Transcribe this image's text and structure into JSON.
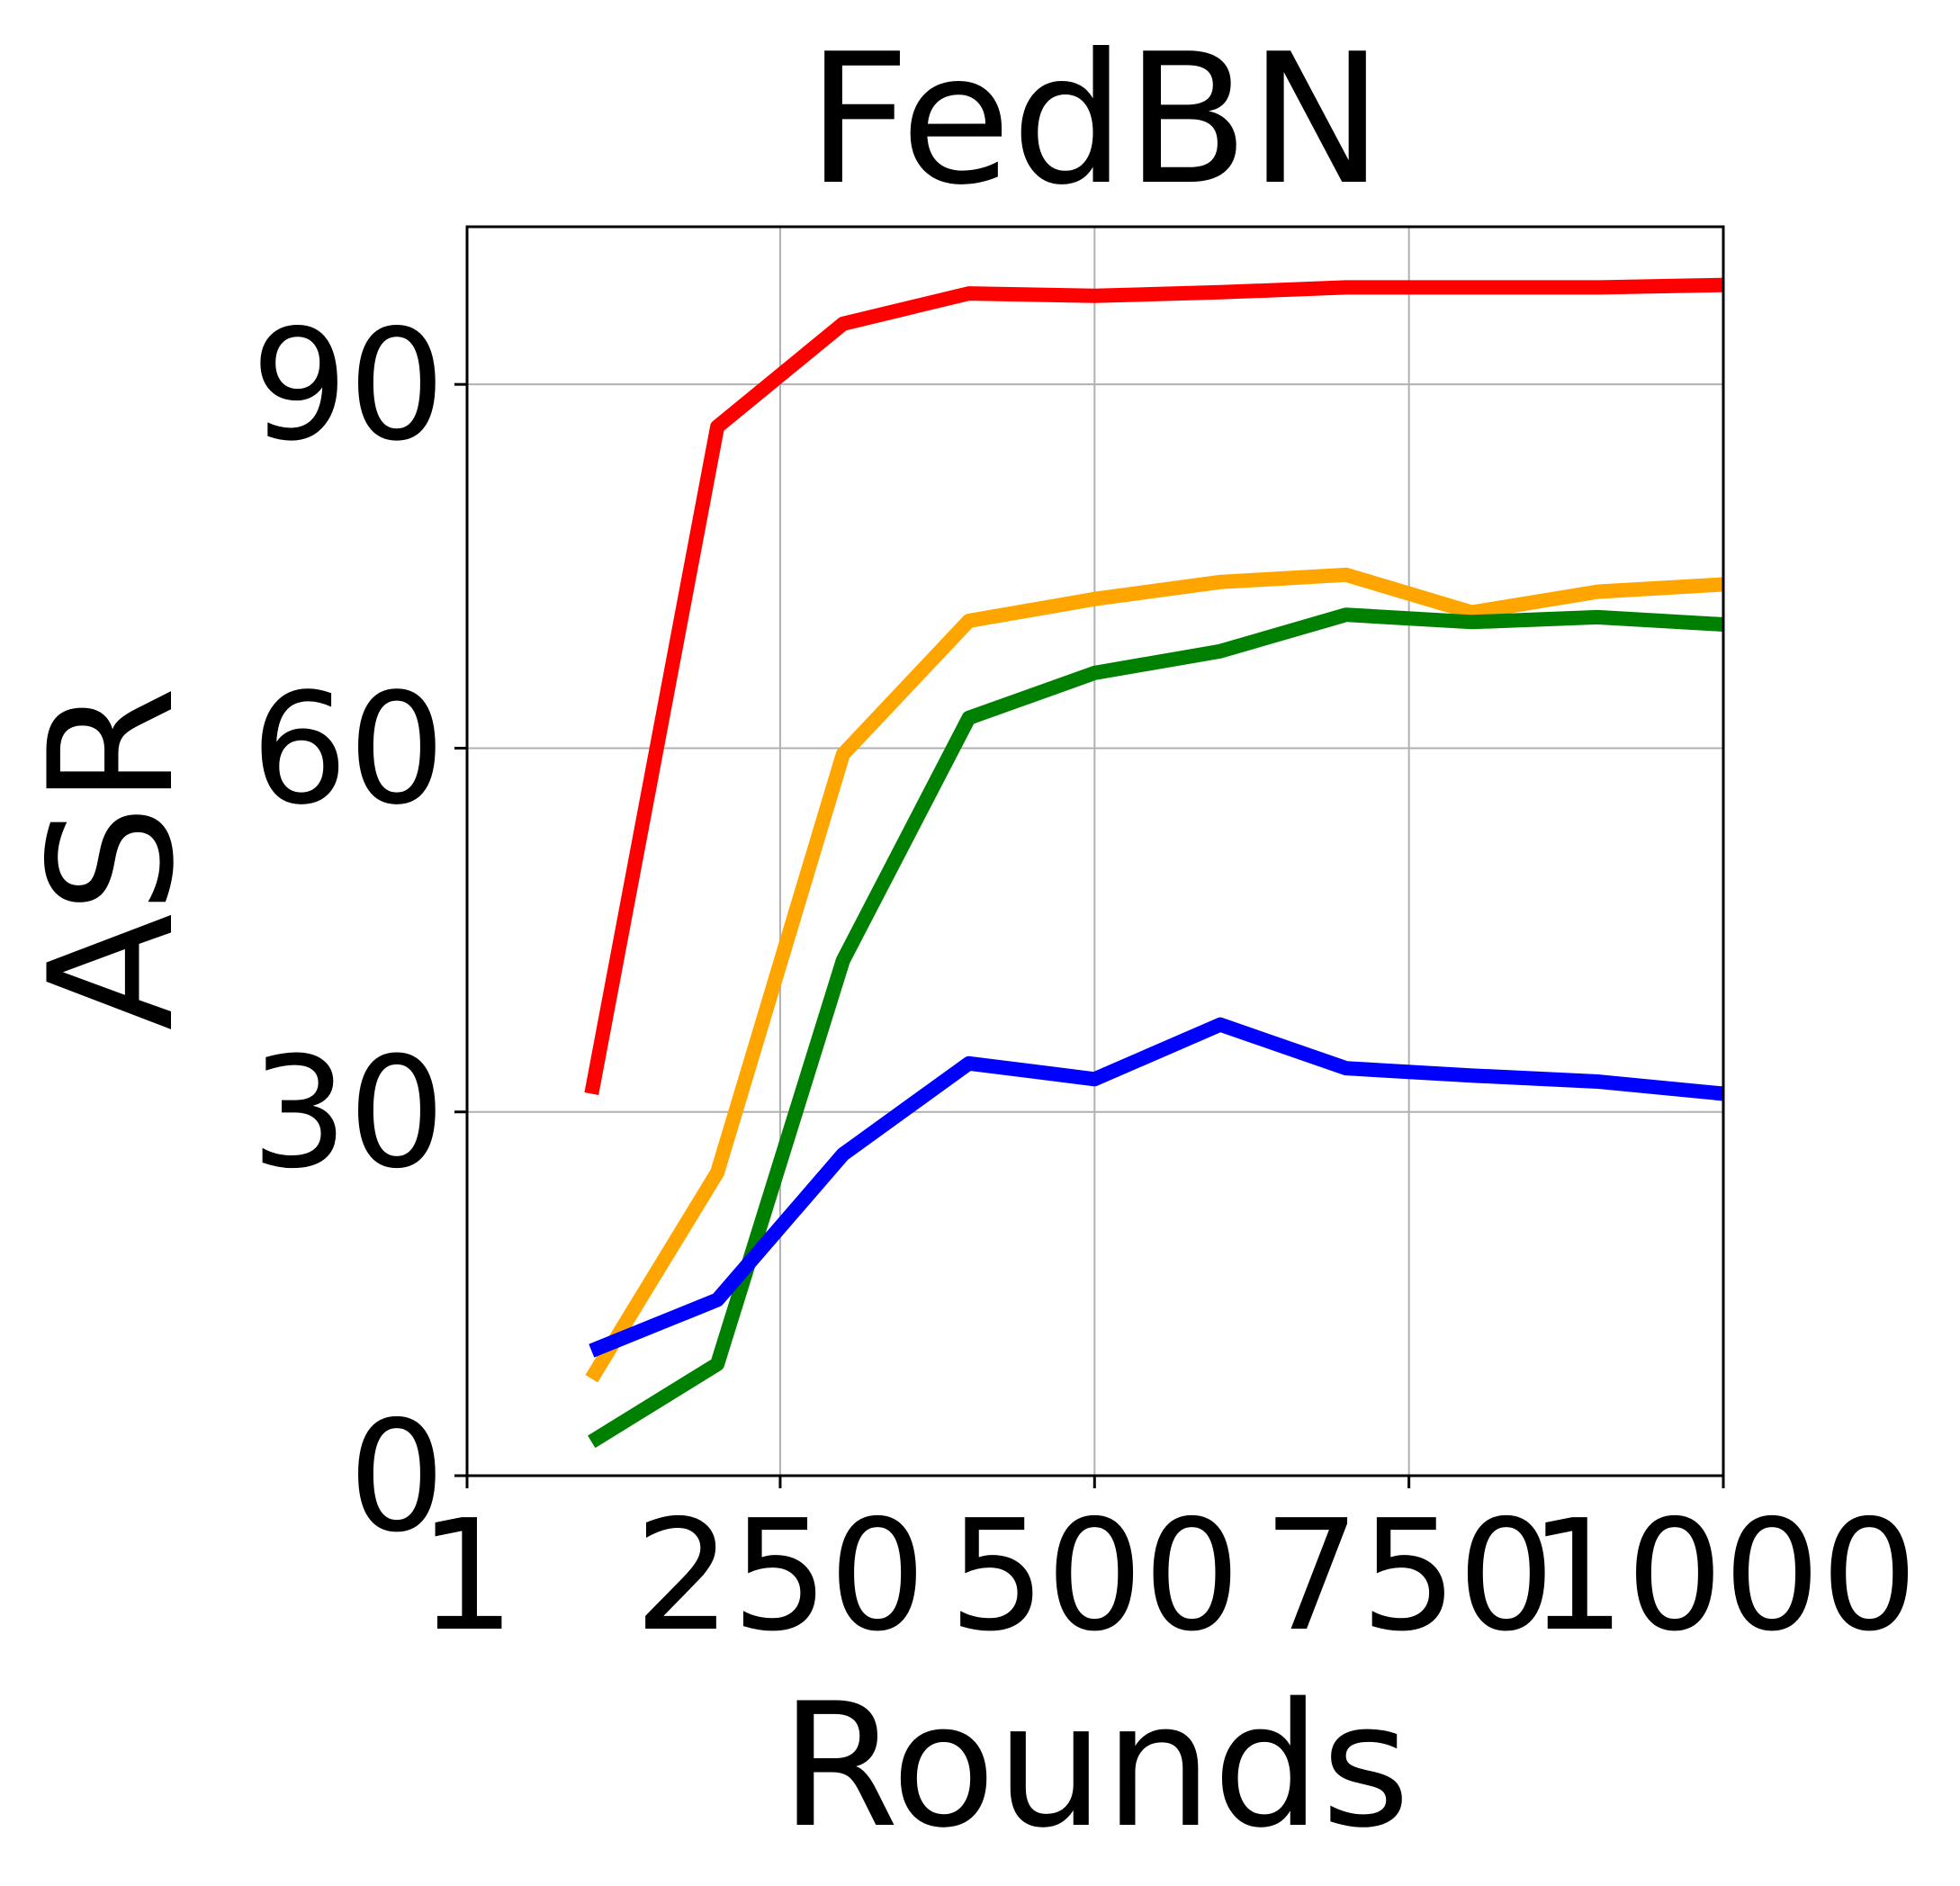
{
  "chart_data": {
    "type": "line",
    "title": "FedBN",
    "xlabel": "Rounds",
    "ylabel": "ASR",
    "xlim": [
      1,
      1000
    ],
    "ylim": [
      0,
      103
    ],
    "grid": true,
    "x_ticks": [
      {
        "value": 1,
        "label": "1"
      },
      {
        "value": 250,
        "label": "250"
      },
      {
        "value": 500,
        "label": "500"
      },
      {
        "value": 750,
        "label": "750"
      },
      {
        "value": 1000,
        "label": "1000"
      }
    ],
    "y_ticks": [
      {
        "value": 0,
        "label": "0"
      },
      {
        "value": 30,
        "label": "30"
      },
      {
        "value": 60,
        "label": "60"
      },
      {
        "value": 90,
        "label": "90"
      }
    ],
    "x": [
      100,
      200,
      300,
      400,
      500,
      600,
      700,
      800,
      900,
      1000
    ],
    "series": [
      {
        "name": "red",
        "color": "#ff0000",
        "x": [
          100,
          200,
          300,
          400,
          500,
          600,
          700,
          800,
          900,
          1000
        ],
        "values": [
          31.5,
          86.5,
          95.0,
          97.5,
          97.3,
          97.6,
          98.0,
          98.0,
          98.0,
          98.2
        ]
      },
      {
        "name": "orange",
        "color": "#ffa500",
        "x": [
          100,
          200,
          300,
          400,
          500,
          600,
          700,
          800,
          900,
          1000
        ],
        "values": [
          8.0,
          25.0,
          59.5,
          70.5,
          72.3,
          73.7,
          74.3,
          71.2,
          72.9,
          73.5
        ]
      },
      {
        "name": "green",
        "color": "#008000",
        "x": [
          100,
          200,
          300,
          400,
          500,
          600,
          700,
          800,
          900,
          1000
        ],
        "values": [
          2.8,
          9.2,
          42.5,
          62.5,
          66.2,
          68.0,
          71.0,
          70.4,
          70.8,
          70.2
        ]
      },
      {
        "name": "blue",
        "color": "#0000ff",
        "x": [
          100,
          200,
          300,
          400,
          500,
          600,
          700,
          800,
          900,
          1000
        ],
        "values": [
          10.3,
          14.5,
          26.5,
          34.0,
          32.7,
          37.2,
          33.6,
          33.0,
          32.5,
          31.5
        ]
      }
    ]
  }
}
